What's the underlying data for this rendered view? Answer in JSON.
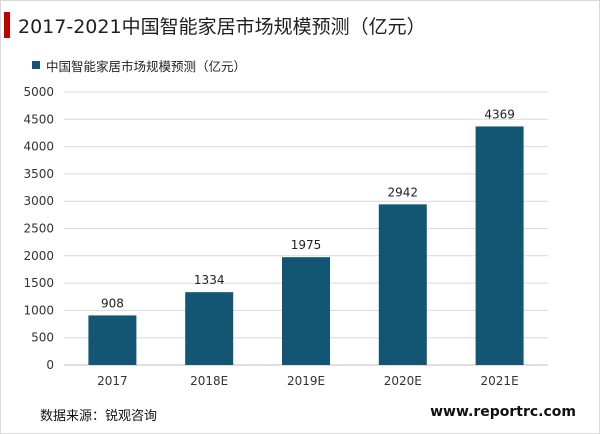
{
  "title": "2017-2021中国智能家居市场规模预测（亿元）",
  "source": "数据来源：锐观咨询",
  "website": "www.reportrc.com",
  "colors": {
    "bar": "#135673",
    "title_accent": "#c00000",
    "grid": "#d9d9d9"
  },
  "chart_data": {
    "type": "bar",
    "title": "2017-2021中国智能家居市场规模预测（亿元）",
    "categories": [
      "2017",
      "2018E",
      "2019E",
      "2020E",
      "2021E"
    ],
    "series": [
      {
        "name": "中国智能家居市场规模预测（亿元）",
        "values": [
          908,
          1334,
          1975,
          2942,
          4369
        ]
      }
    ],
    "ylim": [
      0,
      5000
    ],
    "yticks": [
      0,
      500,
      1000,
      1500,
      2000,
      2500,
      3000,
      3500,
      4000,
      4500,
      5000
    ],
    "grid": true,
    "legend": "top-left",
    "data_labels": true
  }
}
